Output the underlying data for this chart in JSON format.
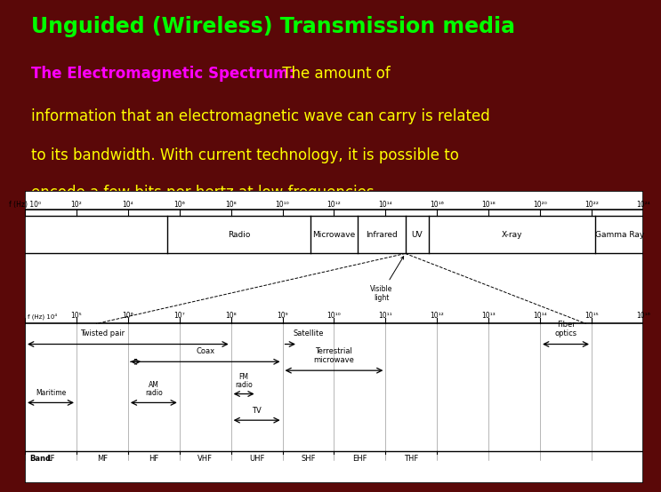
{
  "title": "Unguided (Wireless) Transmission media",
  "title_color": "#00ff00",
  "subtitle_bold": "The Electromagnetic Spectrum:",
  "subtitle_bold_color": "#ff00ff",
  "subtitle_rest_line1": " The amount of",
  "subtitle_line2": "information that an electromagnetic wave can carry is related",
  "subtitle_line3": "to its bandwidth. With current technology, it is possible to",
  "subtitle_line4": "encode a few bits per hertz at low frequencies",
  "subtitle_color": "#ffff00",
  "bg_color": "#5a0808",
  "diagram_bg": "#ffffff",
  "top_freq_labels": [
    "f (Hz) 10⁰",
    "10²",
    "10⁴",
    "10⁶",
    "10⁸",
    "10¹⁰",
    "10¹²",
    "10¹⁴",
    "10¹⁶",
    "10¹⁸",
    "10²⁰",
    "10²²",
    "10²⁴"
  ],
  "bot_freq_prefix": "f (Hz) 10⁴",
  "bot_freq_labels": [
    "10⁴",
    "10⁵",
    "10⁶",
    "10⁷",
    "10⁸",
    "10⁹",
    "10¹⁰",
    "10¹¹",
    "10¹²",
    "10¹³",
    "10¹⁴",
    "10¹⁵",
    "10¹⁶"
  ],
  "band_names": [
    "LF",
    "MF",
    "HF",
    "VHF",
    "UHF",
    "SHF",
    "EHF",
    "THF"
  ]
}
